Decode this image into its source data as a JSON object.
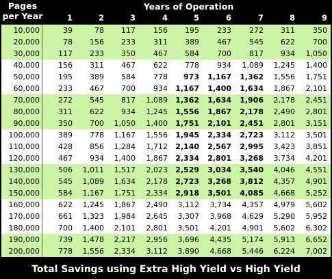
{
  "header": {
    "pages_label_line1": "Pages",
    "pages_label_line2": "per Year",
    "years_label": "Years of Operation"
  },
  "years": [
    "1",
    "2",
    "3",
    "4",
    "5",
    "6",
    "7",
    "8",
    "9"
  ],
  "rows": [
    {
      "pages": "10,000",
      "values": [
        "39",
        "78",
        "117",
        "156",
        "195",
        "233",
        "272",
        "311",
        "350"
      ],
      "bold": [],
      "band": true
    },
    {
      "pages": "20,000",
      "values": [
        "78",
        "156",
        "233",
        "311",
        "389",
        "467",
        "545",
        "622",
        "700"
      ],
      "bold": [],
      "band": true
    },
    {
      "pages": "30,000",
      "values": [
        "117",
        "233",
        "350",
        "467",
        "584",
        "700",
        "817",
        "934",
        "1,050"
      ],
      "bold": [],
      "band": true
    },
    {
      "pages": "40,000",
      "values": [
        "156",
        "311",
        "467",
        "622",
        "778",
        "934",
        "1,089",
        "1,245",
        "1,400"
      ],
      "bold": [],
      "band": false
    },
    {
      "pages": "50,000",
      "values": [
        "195",
        "389",
        "584",
        "778",
        "973",
        "1,167",
        "1,362",
        "1,556",
        "1,751"
      ],
      "bold": [
        4,
        5,
        6
      ],
      "band": false
    },
    {
      "pages": "60,000",
      "values": [
        "233",
        "467",
        "700",
        "934",
        "1,167",
        "1,400",
        "1,634",
        "1,867",
        "2,101"
      ],
      "bold": [
        4,
        5,
        6
      ],
      "band": false
    },
    {
      "pages": "70,000",
      "values": [
        "272",
        "545",
        "817",
        "1,089",
        "1,362",
        "1,634",
        "1,906",
        "2,178",
        "2,451"
      ],
      "bold": [
        4,
        5,
        6
      ],
      "band": true
    },
    {
      "pages": "80,000",
      "values": [
        "311",
        "622",
        "934",
        "1,245",
        "1,556",
        "1,867",
        "2,178",
        "2,490",
        "2,801"
      ],
      "bold": [
        4,
        5,
        6
      ],
      "band": true
    },
    {
      "pages": "90,000",
      "values": [
        "350",
        "700",
        "1,050",
        "1,400",
        "1,751",
        "2,101",
        "2,451",
        "2,801",
        "3,151"
      ],
      "bold": [
        4,
        5,
        6
      ],
      "band": true
    },
    {
      "pages": "100,000",
      "values": [
        "389",
        "778",
        "1,167",
        "1,556",
        "1,945",
        "2,334",
        "2,723",
        "3,112",
        "3,501"
      ],
      "bold": [
        4,
        5,
        6
      ],
      "band": false
    },
    {
      "pages": "110,000",
      "values": [
        "428",
        "856",
        "1,284",
        "1,712",
        "2,140",
        "2,567",
        "2,995",
        "3,423",
        "3,851"
      ],
      "bold": [
        4,
        5,
        6
      ],
      "band": false
    },
    {
      "pages": "120,000",
      "values": [
        "467",
        "934",
        "1,400",
        "1,867",
        "2,334",
        "2,801",
        "3,268",
        "3,734",
        "4,201"
      ],
      "bold": [
        4,
        5,
        6
      ],
      "band": false
    },
    {
      "pages": "130,000",
      "values": [
        "506",
        "1,011",
        "1,517",
        "2,023",
        "2,529",
        "3,034",
        "3,540",
        "4,046",
        "4,551"
      ],
      "bold": [
        4,
        5,
        6
      ],
      "band": true
    },
    {
      "pages": "140,000",
      "values": [
        "545",
        "1,089",
        "1,634",
        "2,178",
        "2,723",
        "3,268",
        "3,812",
        "4,357",
        "4,901"
      ],
      "bold": [
        4,
        5,
        6
      ],
      "band": true
    },
    {
      "pages": "150,000",
      "values": [
        "584",
        "1,167",
        "1,751",
        "2,334",
        "2,918",
        "3,501",
        "4,085",
        "4,668",
        "5,252"
      ],
      "bold": [
        4,
        5,
        6
      ],
      "band": true
    },
    {
      "pages": "160,000",
      "values": [
        "622",
        "1,245",
        "1,867",
        "2,490",
        "3,112",
        "3,734",
        "4,357",
        "4,979",
        "5,602"
      ],
      "bold": [],
      "band": false
    },
    {
      "pages": "170,000",
      "values": [
        "661",
        "1,323",
        "1,984",
        "2,645",
        "3,307",
        "3,968",
        "4,629",
        "5,290",
        "5,952"
      ],
      "bold": [],
      "band": false
    },
    {
      "pages": "180,000",
      "values": [
        "700",
        "1,400",
        "2,101",
        "2,801",
        "3,501",
        "4,201",
        "4,901",
        "5,602",
        "6,302"
      ],
      "bold": [],
      "band": false
    },
    {
      "pages": "190,000",
      "values": [
        "739",
        "1,478",
        "2,217",
        "2,956",
        "3,696",
        "4,435",
        "5,174",
        "5,913",
        "6,652"
      ],
      "bold": [],
      "band": true
    },
    {
      "pages": "200,000",
      "values": [
        "778",
        "1,556",
        "2,334",
        "3,112",
        "3,890",
        "4,668",
        "5,446",
        "6,224",
        "7,002"
      ],
      "bold": [],
      "band": true
    }
  ],
  "footer": {
    "caption": "Total Savings using Extra High Yield vs High Yield"
  }
}
